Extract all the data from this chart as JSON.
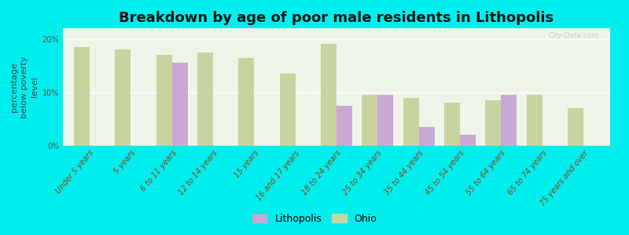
{
  "title": "Breakdown by age of poor male residents in Lithopolis",
  "ylabel": "percentage\nbelow poverty\nlevel",
  "categories": [
    "Under 5 years",
    "5 years",
    "6 to 11 years",
    "12 to 14 years",
    "15 years",
    "16 and 17 years",
    "18 to 24 years",
    "25 to 34 years",
    "35 to 44 years",
    "45 to 54 years",
    "55 to 64 years",
    "65 to 74 years",
    "75 years and over"
  ],
  "lithopolis_values": [
    null,
    null,
    15.5,
    null,
    null,
    null,
    7.5,
    9.5,
    3.5,
    2.0,
    9.5,
    null,
    null
  ],
  "ohio_values": [
    18.5,
    18.0,
    17.0,
    17.5,
    16.5,
    13.5,
    19.0,
    9.5,
    9.0,
    8.0,
    8.5,
    9.5,
    7.0
  ],
  "lithopolis_color": "#c9a8d4",
  "ohio_color": "#c8d4a0",
  "background_color": "#00eeee",
  "plot_bg_color": "#eef5e8",
  "ylim": [
    0,
    22
  ],
  "yticks": [
    0,
    10,
    20
  ],
  "ytick_labels": [
    "0%",
    "10%",
    "20%"
  ],
  "bar_width": 0.38,
  "title_fontsize": 13,
  "axis_label_fontsize": 8,
  "tick_label_fontsize": 7,
  "legend_fontsize": 9,
  "watermark": "City-Data.com"
}
